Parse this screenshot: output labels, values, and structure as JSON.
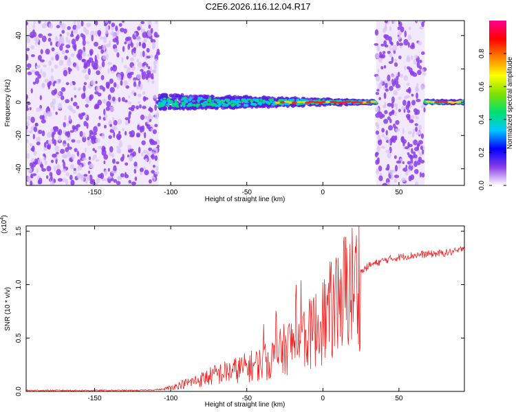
{
  "title": "C2E6.2026.116.12.04.R17",
  "colors": {
    "snr_line": "#ee2222",
    "axis": "#000000",
    "noise": "#8a3ee8",
    "noise_light": "#d9c2f5"
  },
  "chart_data": [
    {
      "type": "heatmap",
      "xlabel": "Height of straight line (km)",
      "ylabel": "Frequency (Hz)",
      "xlim": [
        -195,
        93
      ],
      "ylim": [
        -50,
        49
      ],
      "xticks": [
        -150,
        -100,
        -50,
        0,
        50
      ],
      "yticks": [
        -40,
        -20,
        0,
        20,
        40
      ],
      "colorbar": {
        "label": "Normalized spectral amplitude",
        "range": [
          0,
          1
        ],
        "ticks": [
          "0.0",
          "0.2",
          "0.4",
          "0.6",
          "0.8"
        ],
        "colormap": [
          "#ffffff",
          "#8a3ee8",
          "#0000ff",
          "#00c8ff",
          "#00e070",
          "#80e000",
          "#ffff00",
          "#ff8000",
          "#ff0000",
          "#ff0090"
        ]
      },
      "regions": [
        {
          "x_range": [
            -195,
            -108
          ],
          "description": "broadband noise",
          "amplitude": 0.15
        },
        {
          "x_range": [
            -108,
            35
          ],
          "frequency_center": 0,
          "amplitude": 0.7
        },
        {
          "x_range": [
            35,
            67
          ],
          "description": "broadband noise",
          "amplitude": 0.15
        },
        {
          "x_range": [
            67,
            93
          ],
          "frequency_center": 0,
          "amplitude": 0.9
        }
      ]
    },
    {
      "type": "line",
      "xlabel": "Height of straight line (km)",
      "ylabel": "SNR (10 * v/v)",
      "y_multiplier": "(x10",
      "y_multiplier_exp": "4",
      "xlim": [
        -195,
        93
      ],
      "ylim": [
        0,
        1.55
      ],
      "xticks": [
        -150,
        -100,
        -50,
        0,
        50
      ],
      "yticks": [
        "0.0",
        "0.5",
        "1.0",
        "1.5"
      ],
      "yticks_values": [
        0.0,
        0.5,
        1.0,
        1.5
      ],
      "series": [
        {
          "x": [
            -195,
            -150,
            -120,
            -105,
            -100,
            -90,
            -80,
            -70,
            -60,
            -50,
            -40,
            -35,
            -30,
            -25,
            -20,
            -15,
            -12,
            -10,
            -5,
            0,
            5,
            10,
            12,
            15,
            20,
            25,
            30,
            40,
            50,
            60,
            70,
            80,
            90,
            93
          ],
          "y": [
            0.01,
            0.01,
            0.01,
            0.02,
            0.04,
            0.08,
            0.12,
            0.17,
            0.2,
            0.24,
            0.28,
            0.31,
            0.36,
            0.42,
            0.48,
            0.55,
            0.55,
            0.55,
            0.62,
            0.7,
            0.8,
            0.9,
            0.95,
            1.0,
            1.05,
            1.12,
            1.18,
            1.23,
            1.26,
            1.28,
            1.29,
            1.3,
            1.32,
            1.38
          ]
        }
      ]
    }
  ]
}
